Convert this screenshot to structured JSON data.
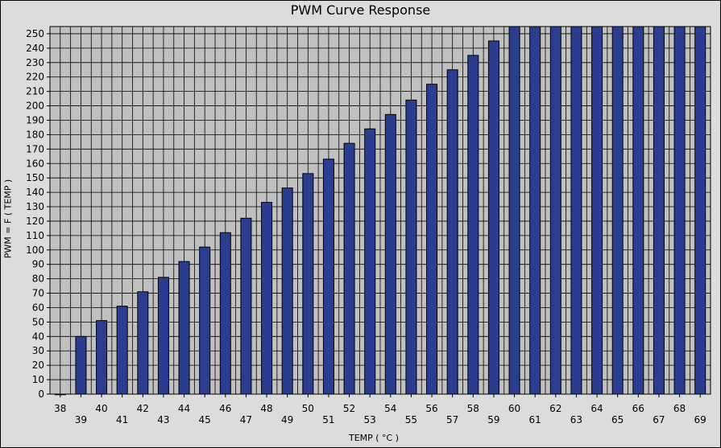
{
  "chart_data": {
    "type": "bar",
    "title": "PWM Curve Response",
    "xlabel": "TEMP ( °C )",
    "ylabel": "PWM = F ( TEMP )",
    "categories": [
      "38",
      "39",
      "40",
      "41",
      "42",
      "43",
      "44",
      "45",
      "46",
      "47",
      "48",
      "49",
      "50",
      "51",
      "52",
      "53",
      "54",
      "55",
      "56",
      "57",
      "58",
      "59",
      "60",
      "61",
      "62",
      "63",
      "64",
      "65",
      "66",
      "67",
      "68",
      "69"
    ],
    "series": [
      {
        "values": [
          0,
          40,
          51,
          61,
          71,
          81,
          92,
          102,
          112,
          122,
          133,
          143,
          153,
          163,
          174,
          184,
          194,
          204,
          215,
          225,
          235,
          245,
          255,
          255,
          255,
          255,
          255,
          255,
          255,
          255,
          255,
          255
        ]
      }
    ],
    "ylim": [
      0,
      255
    ],
    "ytick_step": 10,
    "grid": true,
    "colors": {
      "bar": "#2a3d8f",
      "bar_edge": "#000000",
      "plot_bg": "#c0c0c0",
      "grid": "#000000",
      "background": "#dcdcdc"
    }
  }
}
